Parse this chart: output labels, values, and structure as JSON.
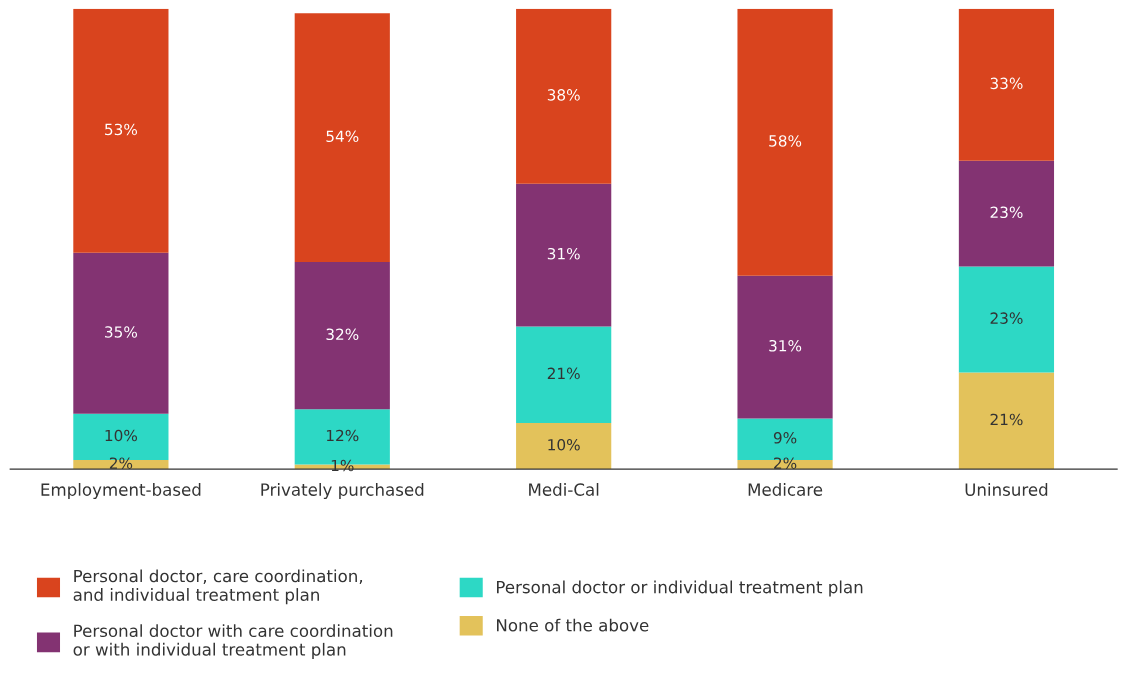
{
  "chart_data": {
    "type": "bar",
    "stacked": true,
    "legend": "bottom",
    "grid": false,
    "tick_labels": "x",
    "categories": [
      "Employment-based",
      "Privately purchased",
      "Medi-Cal",
      "Medicare",
      "Uninsured"
    ],
    "series": [
      {
        "name": "None of the above",
        "color": "#e3c25b",
        "values": [
          2,
          1,
          10,
          2,
          21
        ],
        "value_labels": [
          "2%",
          "1%",
          "10%",
          "2%",
          "21%"
        ]
      },
      {
        "name": "Personal doctor or individual treatment plan",
        "color": "#2dd8c5",
        "values": [
          10,
          12,
          21,
          9,
          23
        ],
        "value_labels": [
          "10%",
          "12%",
          "21%",
          "9%",
          "23%"
        ]
      },
      {
        "name": "Personal doctor with care coordination\nor with individual treatment plan",
        "color": "#833372",
        "values": [
          35,
          32,
          31,
          31,
          23
        ],
        "value_labels": [
          "35%",
          "32%",
          "31%",
          "31%",
          "23%"
        ]
      },
      {
        "name": "Personal doctor, care coordination,\nand individual treatment plan",
        "color": "#d9441e",
        "values": [
          53,
          54,
          38,
          58,
          33
        ],
        "value_labels": [
          "53%",
          "54%",
          "38%",
          "58%",
          "33%"
        ]
      }
    ]
  }
}
